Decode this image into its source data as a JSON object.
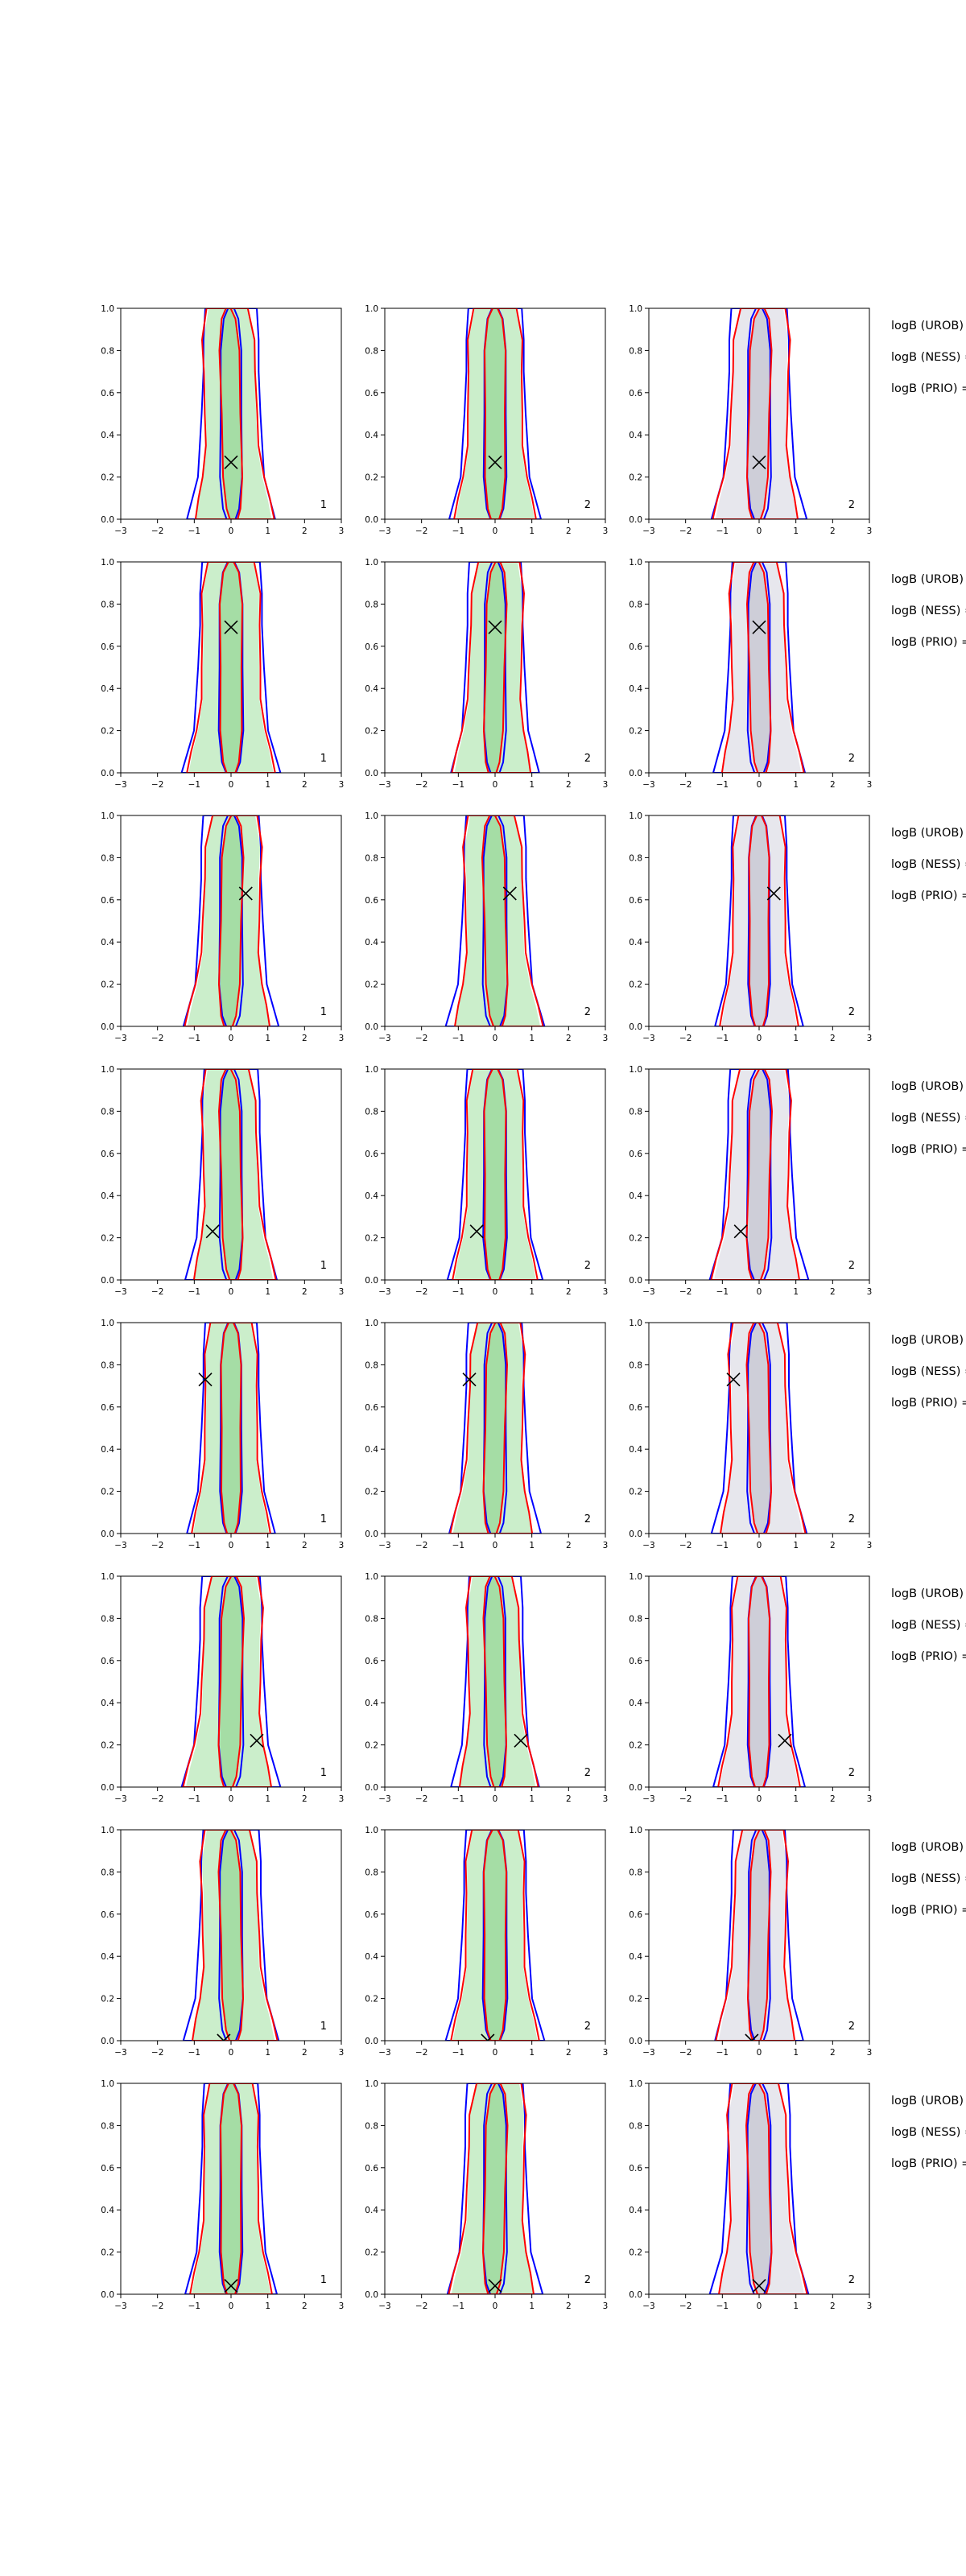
{
  "chart_data": {
    "type": "contour-grid",
    "rows": 8,
    "cols": 3,
    "xlim": [
      -3,
      3
    ],
    "ylim": [
      0.0,
      1.0
    ],
    "xticks": [
      "−3",
      "−2",
      "−1",
      "0",
      "1",
      "2",
      "3"
    ],
    "yticks": [
      "0.0",
      "0.2",
      "0.4",
      "0.6",
      "0.8",
      "1.0"
    ],
    "corner_labels": [
      "1",
      "2",
      "2"
    ],
    "logb_labels": [
      "logB (UROB) =",
      "logB (NESS) =",
      "logB (PRIO) ="
    ],
    "markers": [
      {
        "x": 0.0,
        "y": 0.27
      },
      {
        "x": 0.0,
        "y": 0.69
      },
      {
        "x": 0.4,
        "y": 0.63
      },
      {
        "x": -0.5,
        "y": 0.23
      },
      {
        "x": -0.7,
        "y": 0.73
      },
      {
        "x": 0.7,
        "y": 0.22
      },
      {
        "x": -0.2,
        "y": 0.0
      },
      {
        "x": 0.0,
        "y": 0.04
      }
    ],
    "colors": {
      "blue": "#0000ff",
      "red": "#ff0000",
      "green_fill": "#c8edc8",
      "green_dark": "#9fd99f",
      "grey_fill": "#e6e6ec",
      "grey_dark": "#c9c9d3"
    }
  }
}
